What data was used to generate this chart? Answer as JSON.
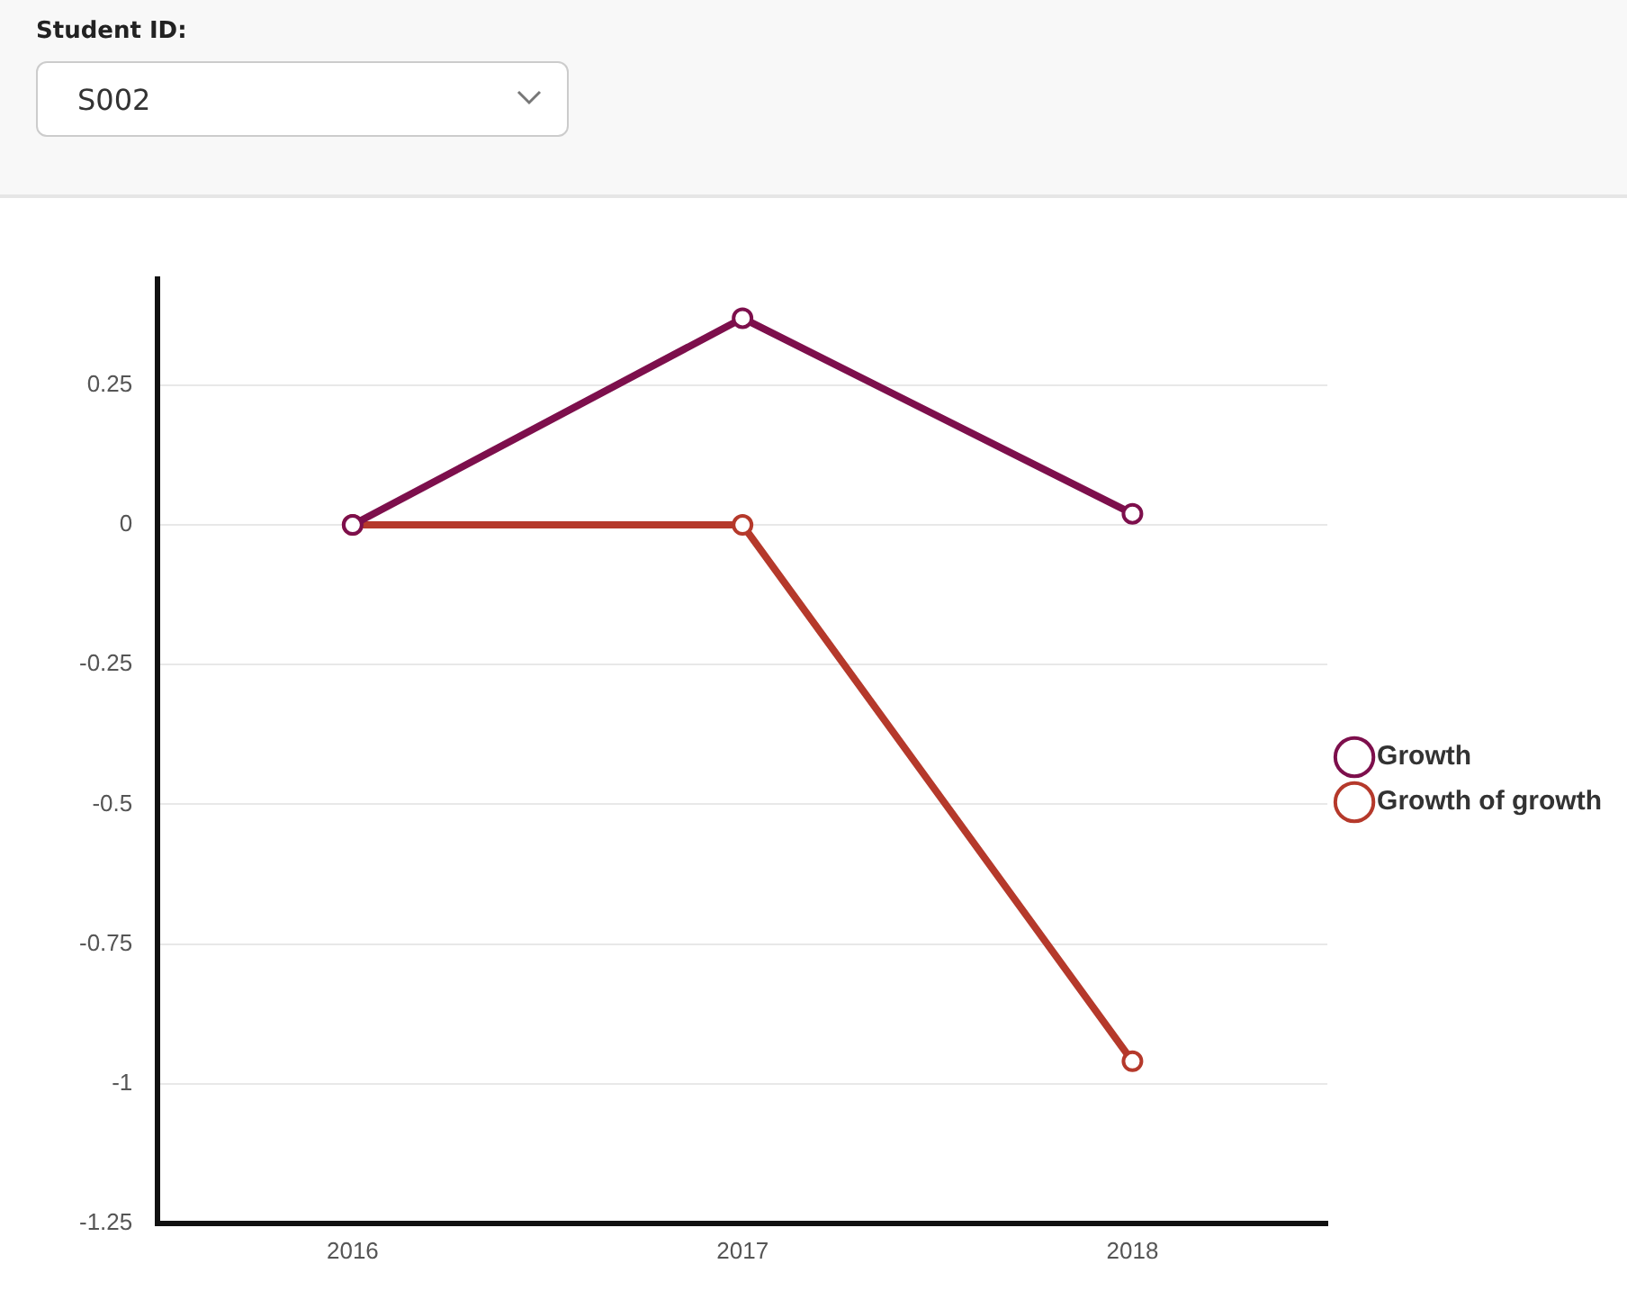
{
  "chart_data": {
    "type": "line",
    "categories": [
      "2016",
      "2017",
      "2018"
    ],
    "series": [
      {
        "name": "Growth",
        "color": "#7d0f4c",
        "values": [
          0,
          0.37,
          0.02
        ]
      },
      {
        "name": "Growth of growth",
        "color": "#b5392b",
        "values": [
          0,
          0,
          -0.96
        ]
      }
    ],
    "ylim": [
      -1.25,
      0.44
    ],
    "yticks": [
      -1.25,
      -1,
      -0.75,
      -0.5,
      -0.25,
      0,
      0.25
    ],
    "grid": "y",
    "legend": "right",
    "marker": "circle",
    "annotations": [
      "Student ID:",
      "S002"
    ]
  }
}
